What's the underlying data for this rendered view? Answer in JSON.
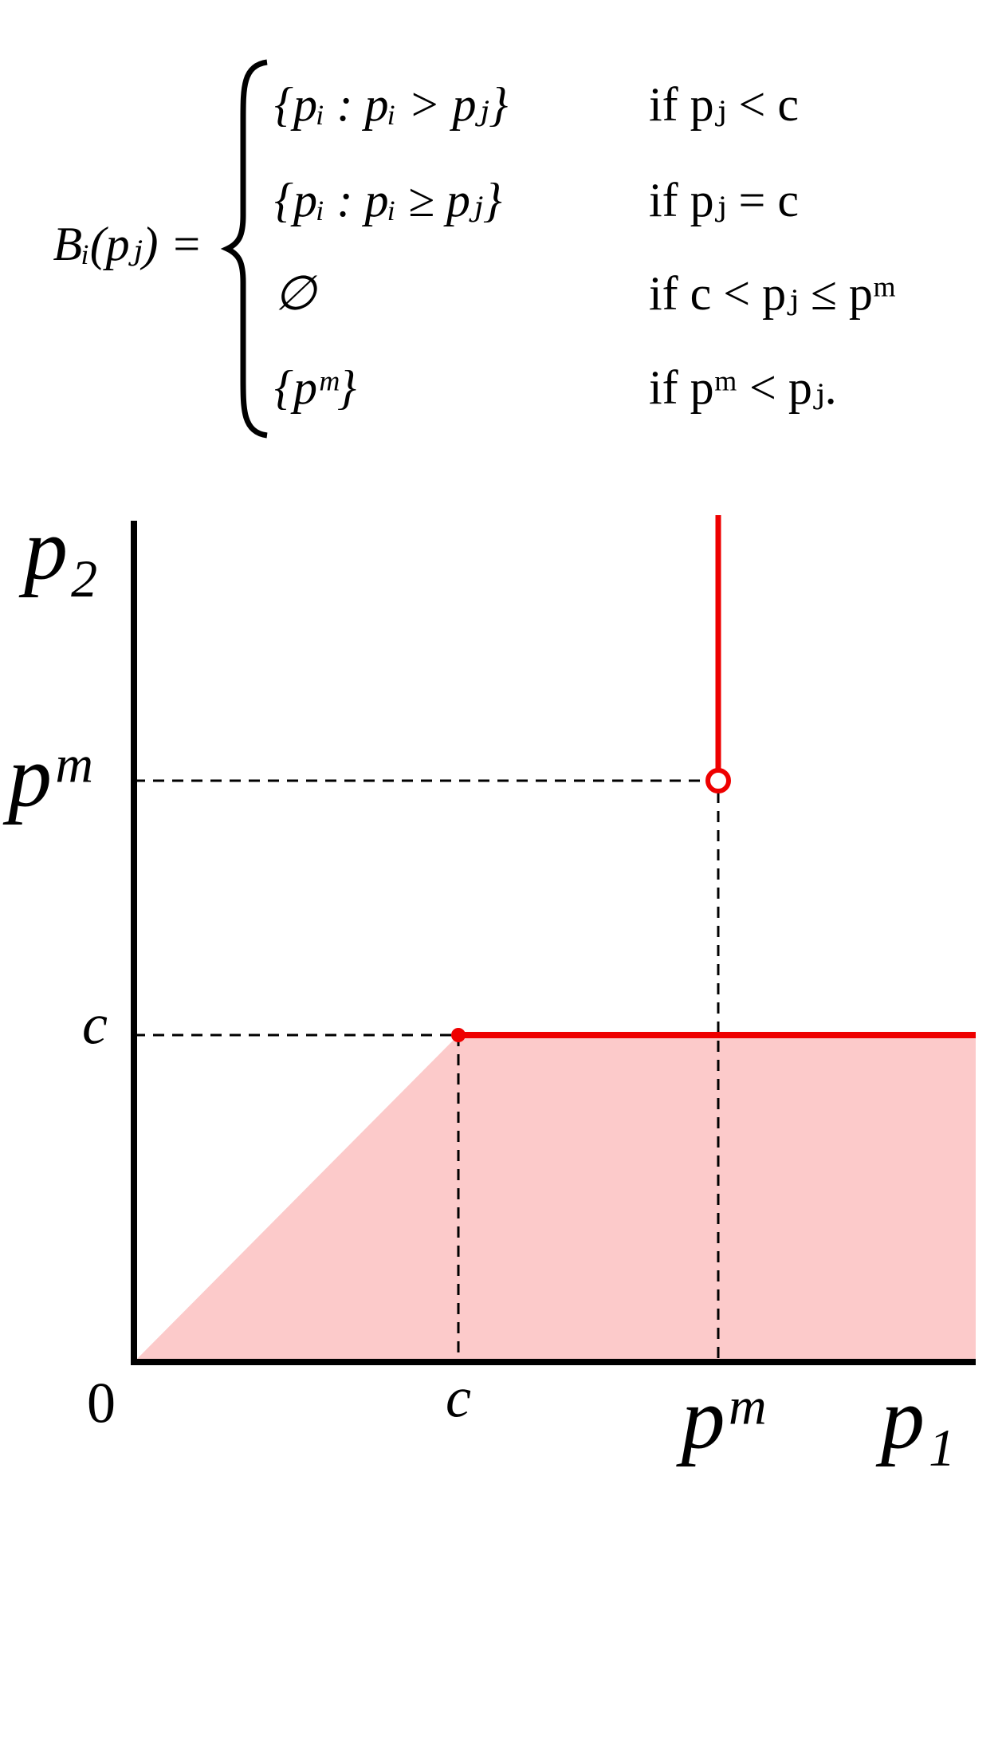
{
  "formula": {
    "lhs": "Bᵢ(pⱼ) =",
    "cases": [
      {
        "set": "{pᵢ : pᵢ > pⱼ}",
        "condition": "if pⱼ < c"
      },
      {
        "set": "{pᵢ : pᵢ ≥ pⱼ}",
        "condition": "if pⱼ = c"
      },
      {
        "set": "∅",
        "condition": "if c < pⱼ ≤ pᵐ"
      },
      {
        "set": "{pᵐ}",
        "condition": "if pᵐ < pⱼ."
      }
    ]
  },
  "axes": {
    "y_label": "p₂",
    "x_label": "p₁",
    "origin": "0",
    "x_ticks": [
      "c",
      "pᵐ"
    ],
    "y_ticks": [
      "pᵐ",
      "c"
    ]
  }
}
